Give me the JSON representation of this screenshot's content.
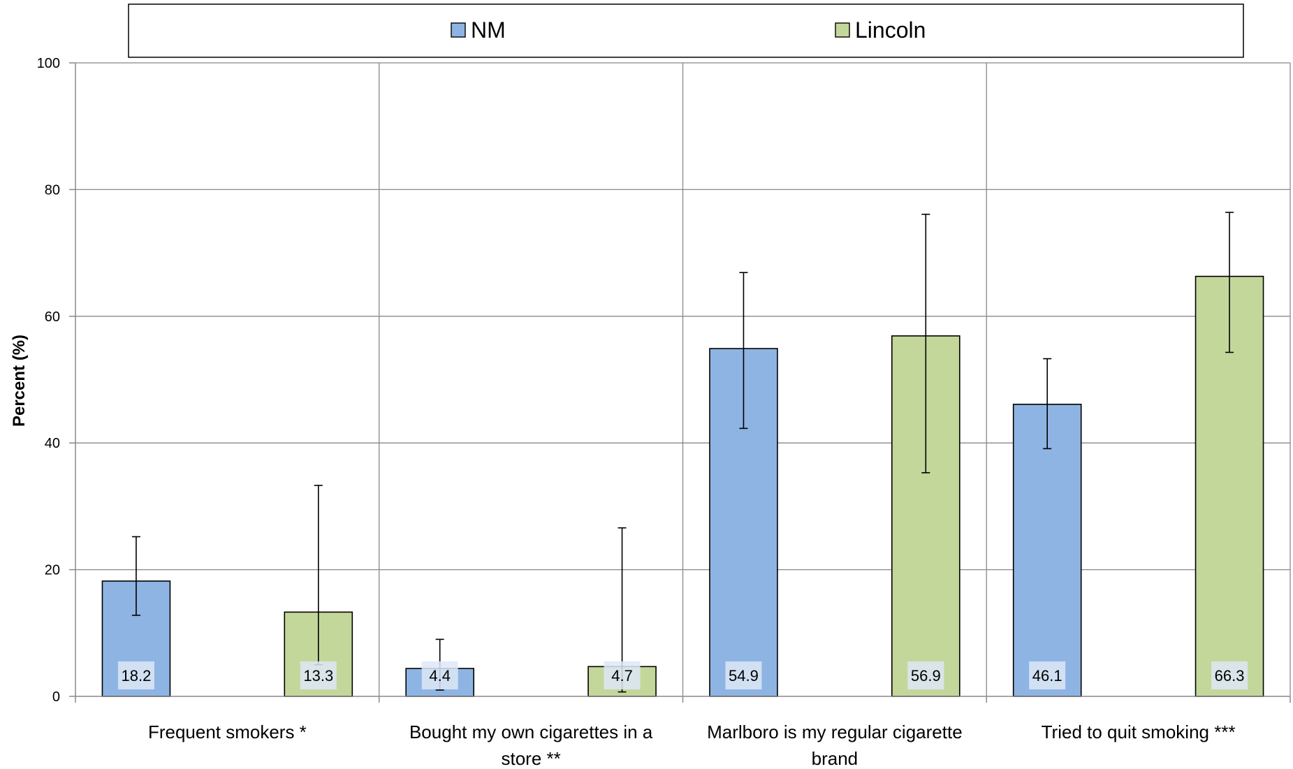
{
  "chart_data": {
    "type": "bar",
    "ylabel": "Percent (%)",
    "ylim": [
      0,
      100
    ],
    "yticks": [
      0,
      20,
      40,
      60,
      80,
      100
    ],
    "grid": true,
    "legend_position": "top",
    "categories": [
      [
        "Frequent smokers *"
      ],
      [
        "Bought my own cigarettes in a",
        "store **"
      ],
      [
        "Marlboro is my regular cigarette",
        "brand"
      ],
      [
        "Tried to quit smoking ***"
      ]
    ],
    "series": [
      {
        "name": "NM",
        "color": "#8EB4E3",
        "values": [
          18.2,
          4.4,
          54.9,
          46.1
        ],
        "error_low": [
          12.8,
          1.0,
          42.3,
          39.1
        ],
        "error_high": [
          25.2,
          9.0,
          66.9,
          53.3
        ]
      },
      {
        "name": "Lincoln",
        "color": "#C4D79B",
        "values": [
          13.3,
          4.7,
          56.9,
          66.3
        ],
        "error_low": [
          5.0,
          0.7,
          35.3,
          54.3
        ],
        "error_high": [
          33.3,
          26.6,
          76.1,
          76.4
        ]
      }
    ]
  }
}
